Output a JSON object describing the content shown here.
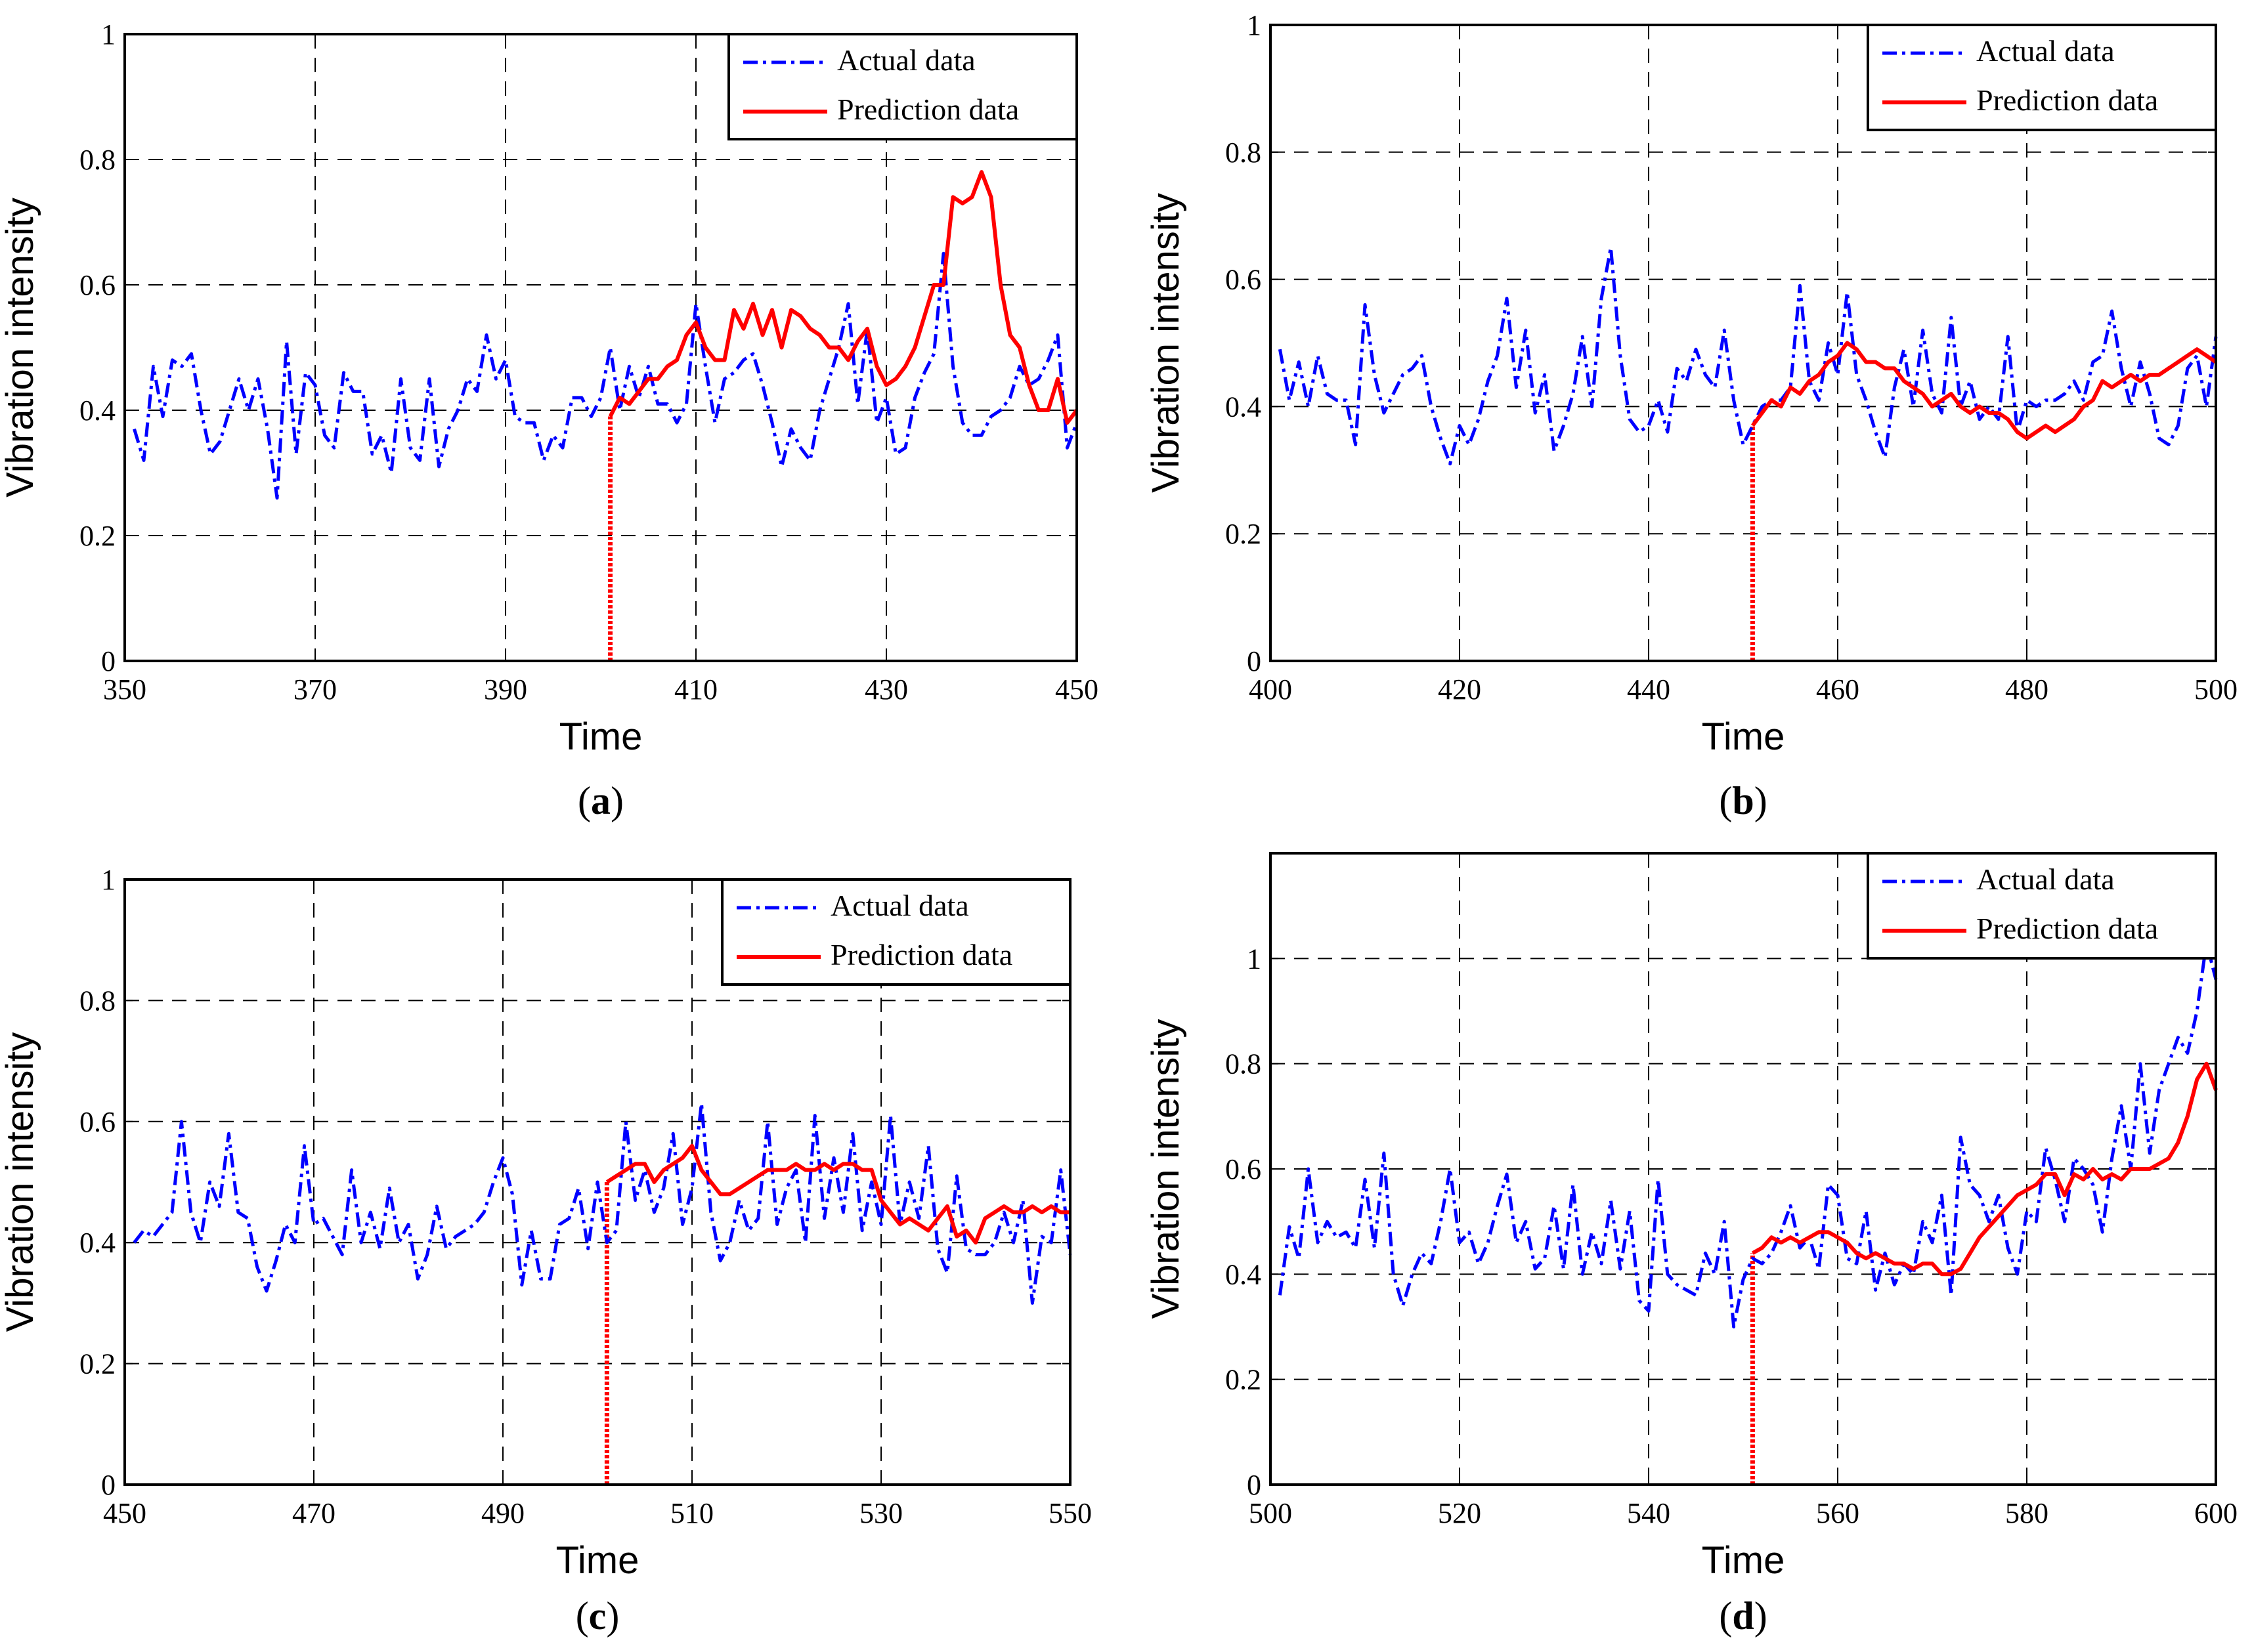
{
  "figure": {
    "captions": [
      "(a)",
      "(b)",
      "(c)",
      "(d)"
    ]
  },
  "colors": {
    "actual": "#0000ff",
    "prediction": "#ff0000",
    "grid": "#000000"
  },
  "chart_data": [
    {
      "id": "a",
      "type": "line",
      "caption_prefix": "(",
      "caption_letter": "a",
      "caption_suffix": ")",
      "xlabel": "Time",
      "ylabel": "Vibration intensity",
      "xlim": [
        350,
        450
      ],
      "ylim": [
        0,
        1
      ],
      "xticks": [
        350,
        370,
        390,
        410,
        430,
        450
      ],
      "yticks": [
        0,
        0.2,
        0.4,
        0.6,
        0.8,
        1
      ],
      "ytick_labels": [
        "0",
        "0.2",
        "0.4",
        "0.6",
        "0.8",
        "1"
      ],
      "grid": true,
      "legend": {
        "position": "top-right",
        "entries": [
          "Actual data",
          "Prediction data"
        ]
      },
      "split_x": 401,
      "series": [
        {
          "name": "Actual data",
          "style": "dash-dot",
          "x0": 351,
          "values": [
            0.37,
            0.32,
            0.47,
            0.39,
            0.48,
            0.47,
            0.49,
            0.4,
            0.33,
            0.35,
            0.4,
            0.45,
            0.4,
            0.45,
            0.37,
            0.26,
            0.51,
            0.33,
            0.46,
            0.44,
            0.36,
            0.34,
            0.46,
            0.43,
            0.43,
            0.33,
            0.36,
            0.3,
            0.45,
            0.34,
            0.32,
            0.45,
            0.31,
            0.37,
            0.4,
            0.45,
            0.43,
            0.52,
            0.45,
            0.48,
            0.39,
            0.38,
            0.38,
            0.32,
            0.36,
            0.34,
            0.42,
            0.42,
            0.39,
            0.42,
            0.5,
            0.4,
            0.47,
            0.42,
            0.47,
            0.41,
            0.41,
            0.38,
            0.41,
            0.57,
            0.47,
            0.38,
            0.45,
            0.46,
            0.48,
            0.49,
            0.44,
            0.38,
            0.31,
            0.37,
            0.34,
            0.32,
            0.4,
            0.45,
            0.5,
            0.57,
            0.41,
            0.53,
            0.38,
            0.42,
            0.33,
            0.34,
            0.42,
            0.46,
            0.49,
            0.65,
            0.47,
            0.38,
            0.36,
            0.36,
            0.39,
            0.4,
            0.42,
            0.47,
            0.44,
            0.45,
            0.48,
            0.52,
            0.34,
            0.38
          ]
        },
        {
          "name": "Prediction data",
          "style": "solid",
          "x0": 401,
          "values": [
            0.39,
            0.42,
            0.41,
            0.43,
            0.45,
            0.45,
            0.47,
            0.48,
            0.52,
            0.54,
            0.5,
            0.48,
            0.48,
            0.56,
            0.53,
            0.57,
            0.52,
            0.56,
            0.5,
            0.56,
            0.55,
            0.53,
            0.52,
            0.5,
            0.5,
            0.48,
            0.51,
            0.53,
            0.47,
            0.44,
            0.45,
            0.47,
            0.5,
            0.55,
            0.6,
            0.6,
            0.74,
            0.73,
            0.74,
            0.78,
            0.74,
            0.6,
            0.52,
            0.5,
            0.44,
            0.4,
            0.4,
            0.45,
            0.38,
            0.4
          ]
        }
      ]
    },
    {
      "id": "b",
      "type": "line",
      "caption_prefix": "(",
      "caption_letter": "b",
      "caption_suffix": ")",
      "xlabel": "Time",
      "ylabel": "Vibration intensity",
      "xlim": [
        400,
        500
      ],
      "ylim": [
        0,
        1
      ],
      "xticks": [
        400,
        420,
        440,
        460,
        480,
        500
      ],
      "yticks": [
        0,
        0.2,
        0.4,
        0.6,
        0.8,
        1
      ],
      "ytick_labels": [
        "0",
        "0.2",
        "0.4",
        "0.6",
        "0.8",
        "1"
      ],
      "grid": true,
      "legend": {
        "position": "top-right",
        "entries": [
          "Actual data",
          "Prediction data"
        ]
      },
      "split_x": 451,
      "series": [
        {
          "name": "Actual data",
          "style": "dash-dot",
          "x0": 401,
          "values": [
            0.49,
            0.41,
            0.47,
            0.4,
            0.48,
            0.42,
            0.41,
            0.41,
            0.34,
            0.56,
            0.45,
            0.39,
            0.42,
            0.45,
            0.46,
            0.48,
            0.4,
            0.35,
            0.31,
            0.37,
            0.34,
            0.38,
            0.44,
            0.48,
            0.57,
            0.43,
            0.52,
            0.39,
            0.45,
            0.33,
            0.37,
            0.42,
            0.51,
            0.4,
            0.57,
            0.65,
            0.48,
            0.38,
            0.36,
            0.37,
            0.41,
            0.36,
            0.46,
            0.44,
            0.49,
            0.45,
            0.43,
            0.52,
            0.41,
            0.34,
            0.37,
            0.4,
            0.41,
            0.41,
            0.43,
            0.59,
            0.44,
            0.41,
            0.5,
            0.45,
            0.58,
            0.45,
            0.41,
            0.36,
            0.32,
            0.43,
            0.49,
            0.4,
            0.52,
            0.42,
            0.39,
            0.54,
            0.4,
            0.44,
            0.38,
            0.4,
            0.38,
            0.51,
            0.36,
            0.41,
            0.4,
            0.41,
            0.41,
            0.42,
            0.44,
            0.41,
            0.47,
            0.48,
            0.55,
            0.46,
            0.4,
            0.47,
            0.42,
            0.35,
            0.34,
            0.37,
            0.46,
            0.48,
            0.4,
            0.51
          ]
        },
        {
          "name": "Prediction data",
          "style": "solid",
          "x0": 451,
          "values": [
            0.37,
            0.39,
            0.41,
            0.4,
            0.43,
            0.42,
            0.44,
            0.45,
            0.47,
            0.48,
            0.5,
            0.49,
            0.47,
            0.47,
            0.46,
            0.46,
            0.44,
            0.43,
            0.42,
            0.4,
            0.41,
            0.42,
            0.4,
            0.39,
            0.4,
            0.39,
            0.39,
            0.38,
            0.36,
            0.35,
            0.36,
            0.37,
            0.36,
            0.37,
            0.38,
            0.4,
            0.41,
            0.44,
            0.43,
            0.44,
            0.45,
            0.44,
            0.45,
            0.45,
            0.46,
            0.47,
            0.48,
            0.49,
            0.48,
            0.47
          ]
        }
      ]
    },
    {
      "id": "c",
      "type": "line",
      "caption_prefix": "(",
      "caption_letter": "c",
      "caption_suffix": ")",
      "xlabel": "Time",
      "ylabel": "Vibration intensity",
      "xlim": [
        450,
        550
      ],
      "ylim": [
        0,
        1
      ],
      "xticks": [
        450,
        470,
        490,
        510,
        530,
        550
      ],
      "yticks": [
        0,
        0.2,
        0.4,
        0.6,
        0.8,
        1
      ],
      "ytick_labels": [
        "0",
        "0.2",
        "0.4",
        "0.6",
        "0.8",
        "1"
      ],
      "grid": true,
      "legend": {
        "position": "top-right",
        "entries": [
          "Actual data",
          "Prediction data"
        ]
      },
      "split_x": 501,
      "series": [
        {
          "name": "Actual data",
          "style": "dash-dot",
          "x0": 451,
          "values": [
            0.4,
            0.42,
            0.41,
            0.43,
            0.45,
            0.6,
            0.45,
            0.4,
            0.5,
            0.46,
            0.58,
            0.45,
            0.44,
            0.36,
            0.32,
            0.37,
            0.43,
            0.4,
            0.56,
            0.43,
            0.44,
            0.41,
            0.38,
            0.52,
            0.4,
            0.45,
            0.39,
            0.49,
            0.4,
            0.43,
            0.34,
            0.38,
            0.46,
            0.39,
            0.41,
            0.42,
            0.43,
            0.45,
            0.5,
            0.54,
            0.48,
            0.33,
            0.42,
            0.34,
            0.34,
            0.43,
            0.44,
            0.49,
            0.39,
            0.5,
            0.4,
            0.42,
            0.6,
            0.47,
            0.52,
            0.45,
            0.49,
            0.58,
            0.43,
            0.49,
            0.63,
            0.45,
            0.37,
            0.4,
            0.47,
            0.42,
            0.44,
            0.6,
            0.43,
            0.49,
            0.52,
            0.4,
            0.61,
            0.44,
            0.54,
            0.45,
            0.58,
            0.42,
            0.5,
            0.43,
            0.61,
            0.43,
            0.5,
            0.44,
            0.56,
            0.39,
            0.35,
            0.51,
            0.39,
            0.38,
            0.38,
            0.4,
            0.45,
            0.4,
            0.47,
            0.3,
            0.41,
            0.4,
            0.52,
            0.38
          ]
        },
        {
          "name": "Prediction data",
          "style": "solid",
          "x0": 501,
          "values": [
            0.5,
            0.51,
            0.52,
            0.53,
            0.53,
            0.5,
            0.52,
            0.53,
            0.54,
            0.56,
            0.52,
            0.5,
            0.48,
            0.48,
            0.49,
            0.5,
            0.51,
            0.52,
            0.52,
            0.52,
            0.53,
            0.52,
            0.52,
            0.53,
            0.52,
            0.53,
            0.53,
            0.52,
            0.52,
            0.47,
            0.45,
            0.43,
            0.44,
            0.43,
            0.42,
            0.44,
            0.46,
            0.41,
            0.42,
            0.4,
            0.44,
            0.45,
            0.46,
            0.45,
            0.45,
            0.46,
            0.45,
            0.46,
            0.45,
            0.45
          ]
        }
      ]
    },
    {
      "id": "d",
      "type": "line",
      "caption_prefix": "(",
      "caption_letter": "d",
      "caption_suffix": ")",
      "xlabel": "Time",
      "ylabel": "Vibration intensity",
      "xlim": [
        500,
        600
      ],
      "ylim": [
        0,
        1.2
      ],
      "xticks": [
        500,
        520,
        540,
        560,
        580,
        600
      ],
      "yticks": [
        0,
        0.2,
        0.4,
        0.6,
        0.8,
        1
      ],
      "ytick_labels": [
        "0",
        "0.2",
        "0.4",
        "0.6",
        "0.8",
        "1"
      ],
      "grid": true,
      "legend": {
        "position": "top-right",
        "entries": [
          "Actual data",
          "Prediction data"
        ]
      },
      "split_x": 551,
      "series": [
        {
          "name": "Actual data",
          "style": "dash-dot",
          "x0": 501,
          "values": [
            0.36,
            0.49,
            0.43,
            0.6,
            0.46,
            0.5,
            0.47,
            0.48,
            0.45,
            0.58,
            0.45,
            0.63,
            0.4,
            0.34,
            0.4,
            0.44,
            0.42,
            0.5,
            0.6,
            0.46,
            0.48,
            0.42,
            0.46,
            0.53,
            0.59,
            0.46,
            0.5,
            0.41,
            0.43,
            0.53,
            0.41,
            0.57,
            0.4,
            0.48,
            0.42,
            0.54,
            0.41,
            0.52,
            0.35,
            0.33,
            0.58,
            0.4,
            0.38,
            0.37,
            0.36,
            0.44,
            0.4,
            0.5,
            0.3,
            0.39,
            0.43,
            0.42,
            0.44,
            0.48,
            0.53,
            0.45,
            0.47,
            0.41,
            0.57,
            0.55,
            0.43,
            0.42,
            0.52,
            0.37,
            0.44,
            0.38,
            0.42,
            0.4,
            0.5,
            0.46,
            0.55,
            0.36,
            0.66,
            0.57,
            0.55,
            0.5,
            0.55,
            0.45,
            0.4,
            0.52,
            0.5,
            0.64,
            0.58,
            0.5,
            0.62,
            0.6,
            0.57,
            0.48,
            0.62,
            0.72,
            0.6,
            0.8,
            0.63,
            0.75,
            0.8,
            0.85,
            0.82,
            0.9,
            1.03,
            0.96
          ]
        },
        {
          "name": "Prediction data",
          "style": "solid",
          "x0": 551,
          "values": [
            0.44,
            0.45,
            0.47,
            0.46,
            0.47,
            0.46,
            0.47,
            0.48,
            0.48,
            0.47,
            0.46,
            0.44,
            0.43,
            0.44,
            0.43,
            0.42,
            0.42,
            0.41,
            0.42,
            0.42,
            0.4,
            0.4,
            0.41,
            0.44,
            0.47,
            0.49,
            0.51,
            0.53,
            0.55,
            0.56,
            0.57,
            0.59,
            0.59,
            0.55,
            0.59,
            0.58,
            0.6,
            0.58,
            0.59,
            0.58,
            0.6,
            0.6,
            0.6,
            0.61,
            0.62,
            0.65,
            0.7,
            0.77,
            0.8,
            0.75
          ]
        }
      ]
    }
  ]
}
